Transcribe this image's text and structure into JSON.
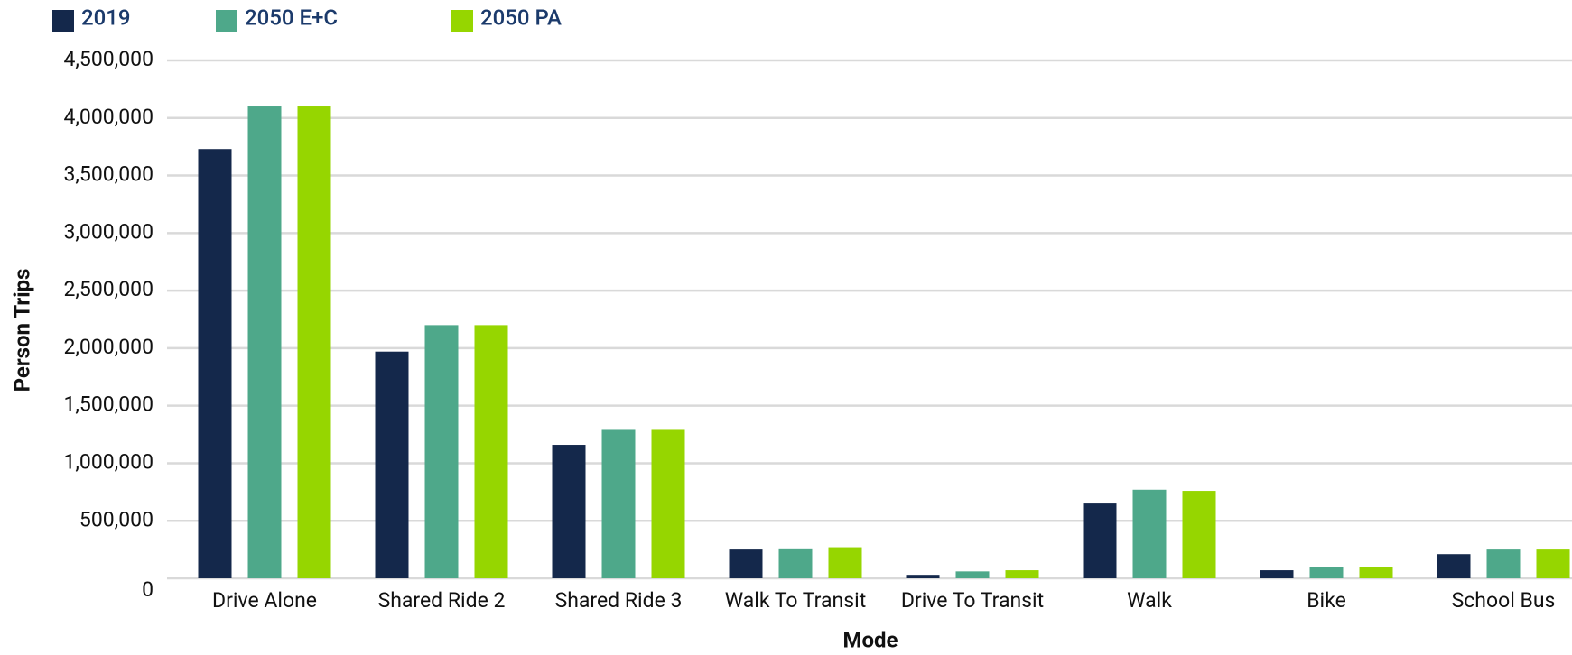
{
  "chart_data": {
    "type": "bar",
    "categories": [
      "Drive Alone",
      "Shared Ride 2",
      "Shared Ride 3",
      "Walk To Transit",
      "Drive To Transit",
      "Walk",
      "Bike",
      "School Bus"
    ],
    "series": [
      {
        "name": "2019",
        "color": "#14284b",
        "values": [
          3730000,
          1970000,
          1160000,
          250000,
          30000,
          650000,
          70000,
          210000
        ]
      },
      {
        "name": "2050 E+C",
        "color": "#4ea88a",
        "values": [
          4100000,
          2200000,
          1290000,
          260000,
          60000,
          770000,
          100000,
          250000
        ]
      },
      {
        "name": "2050 PA",
        "color": "#96d600",
        "values": [
          4100000,
          2200000,
          1290000,
          270000,
          70000,
          760000,
          100000,
          250000
        ]
      }
    ],
    "ylim": [
      0,
      4500000
    ],
    "yticks": [
      0,
      {
        "value": 500000,
        "label": "500,000"
      },
      {
        "value": 1000000,
        "label": "1,000,000"
      },
      {
        "value": 1500000,
        "label": "1,500,000"
      },
      {
        "value": 2000000,
        "label": "2,000,000"
      },
      {
        "value": 2500000,
        "label": "2,500,000"
      },
      {
        "value": 3000000,
        "label": "3,000,000"
      },
      {
        "value": 3500000,
        "label": "3,500,000"
      },
      {
        "value": 4000000,
        "label": "4,000,000"
      },
      {
        "value": 4500000,
        "label": "4,500,000"
      }
    ],
    "ylabel": "Person Trips",
    "xlabel": "Mode",
    "grid": true,
    "legend": "top-left"
  }
}
